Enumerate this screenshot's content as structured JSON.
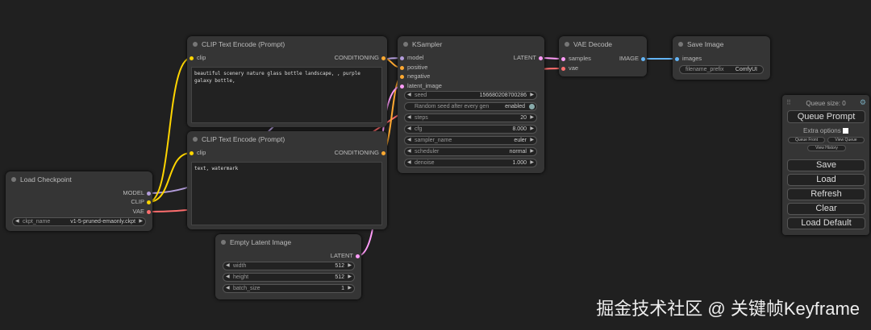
{
  "colors": {
    "model": "#b39ddb",
    "clip": "#ffd500",
    "vae": "#ff6e6e",
    "conditioning": "#ffa931",
    "latent": "#ff9cf9",
    "image": "#64b5f6"
  },
  "clip1": {
    "title": "CLIP Text Encode (Prompt)",
    "input": "clip",
    "output": "CONDITIONING",
    "text": "beautiful scenery nature glass bottle landscape, , purple galaxy bottle,"
  },
  "clip2": {
    "title": "CLIP Text Encode (Prompt)",
    "input": "clip",
    "output": "CONDITIONING",
    "text": "text, watermark"
  },
  "ksampler": {
    "title": "KSampler",
    "inputs": [
      "model",
      "positive",
      "negative",
      "latent_image"
    ],
    "output": "LATENT",
    "widgets": [
      {
        "label": "seed",
        "value": "156680208700286"
      },
      {
        "label": "Random seed after every gen",
        "value": "enabled"
      },
      {
        "label": "steps",
        "value": "20"
      },
      {
        "label": "cfg",
        "value": "8.000"
      },
      {
        "label": "sampler_name",
        "value": "euler"
      },
      {
        "label": "scheduler",
        "value": "normal"
      },
      {
        "label": "denoise",
        "value": "1.000"
      }
    ]
  },
  "vae_decode": {
    "title": "VAE Decode",
    "inputs": [
      "samples",
      "vae"
    ],
    "output": "IMAGE"
  },
  "save_image": {
    "title": "Save Image",
    "input": "images",
    "widget": {
      "label": "filename_prefix",
      "value": "ComfyUI"
    }
  },
  "load_checkpoint": {
    "title": "Load Checkpoint",
    "outputs": [
      "MODEL",
      "CLIP",
      "VAE"
    ],
    "widget": {
      "label": "ckpt_name",
      "value": "v1-5-pruned-emaonly.ckpt"
    }
  },
  "empty_latent": {
    "title": "Empty Latent Image",
    "output": "LATENT",
    "widgets": [
      {
        "label": "width",
        "value": "512"
      },
      {
        "label": "height",
        "value": "512"
      },
      {
        "label": "batch_size",
        "value": "1"
      }
    ]
  },
  "panel": {
    "queue_size": "Queue size: 0",
    "queue_prompt": "Queue Prompt",
    "extra_options": "Extra options",
    "queue_front": "Queue Front",
    "view_queue": "View Queue",
    "view_history": "View History",
    "save": "Save",
    "load": "Load",
    "refresh": "Refresh",
    "clear": "Clear",
    "load_default": "Load Default"
  },
  "watermark": "掘金技术社区 @ 关键帧Keyframe"
}
